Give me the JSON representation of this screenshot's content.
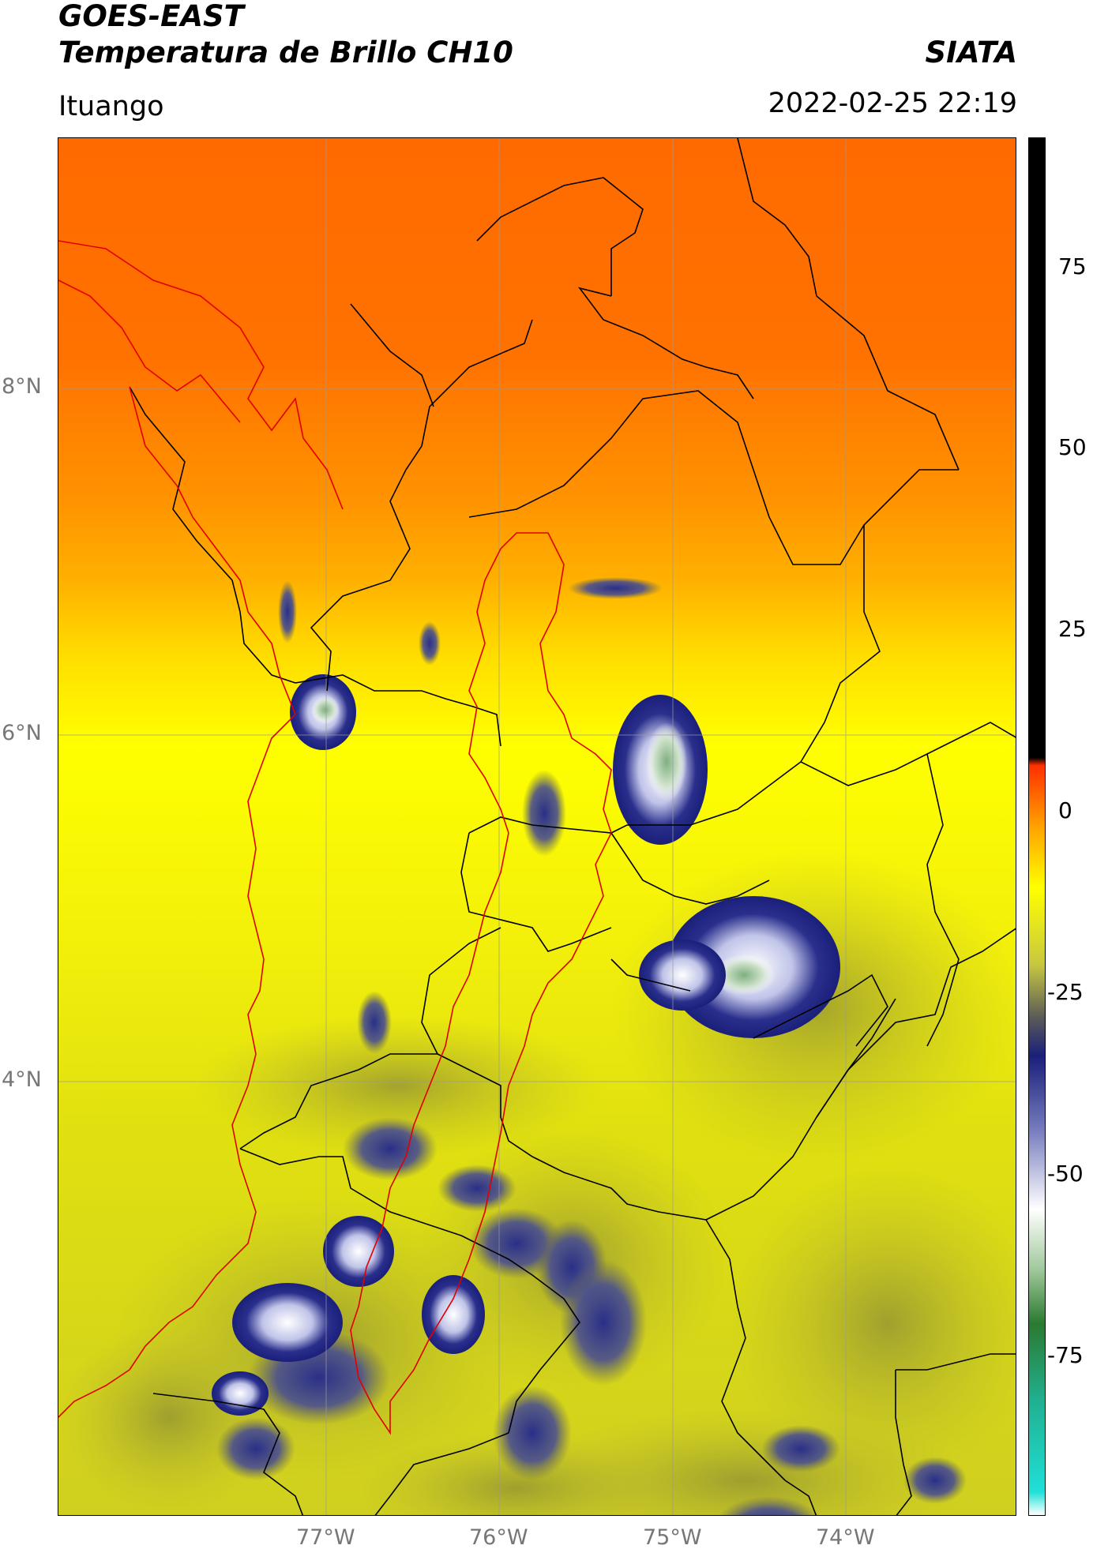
{
  "header": {
    "satellite": "GOES-EAST",
    "product": "Temperatura de Brillo CH10",
    "brand": "SIATA",
    "location": "Ituango",
    "timestamp": "2022-02-25 22:19"
  },
  "map": {
    "lat_ticks": [
      "8°N",
      "6°N",
      "4°N"
    ],
    "lon_ticks": [
      "77°W",
      "76°W",
      "75°W",
      "74°W"
    ],
    "extent": {
      "lon": [
        -78.55,
        -73.0
      ],
      "lat": [
        1.3,
        9.35
      ]
    }
  },
  "colorbar": {
    "ticks": [
      "75",
      "50",
      "25",
      "0",
      "-25",
      "-50",
      "-75"
    ],
    "range": [
      -90,
      90
    ],
    "stops": [
      {
        "v": -90,
        "c": "#ffffff"
      },
      {
        "v": -87,
        "c": "#20e0d8"
      },
      {
        "v": -75,
        "c": "#20b090"
      },
      {
        "v": -65,
        "c": "#2a7a30"
      },
      {
        "v": -58,
        "c": "#9fc79a"
      },
      {
        "v": -50,
        "c": "#ffffff"
      },
      {
        "v": -40,
        "c": "#7a80c0"
      },
      {
        "v": -30,
        "c": "#1a1f7a"
      },
      {
        "v": -25,
        "c": "#5a5a58"
      },
      {
        "v": -18,
        "c": "#c8c840"
      },
      {
        "v": -8,
        "c": "#ffff00"
      },
      {
        "v": 0,
        "c": "#ffa200"
      },
      {
        "v": 8,
        "c": "#ff3000"
      },
      {
        "v": 9,
        "c": "#000000"
      },
      {
        "v": 90,
        "c": "#000000"
      }
    ]
  }
}
